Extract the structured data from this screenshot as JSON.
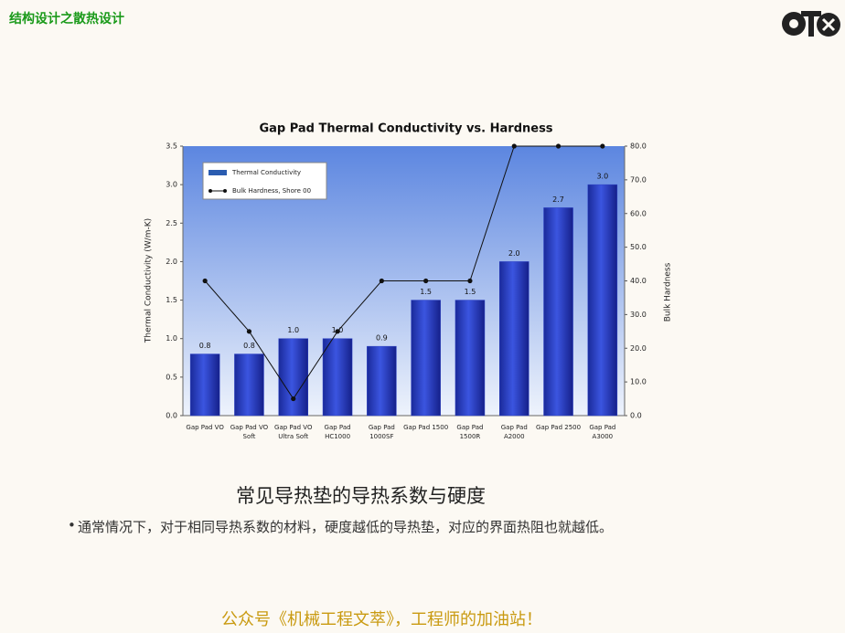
{
  "header": {
    "title": "结构设计之散热设计"
  },
  "chart_data": {
    "type": "bar",
    "title": "Gap Pad Thermal Conductivity vs. Hardness",
    "ylabel": "Thermal Conductivity (W/m-K)",
    "y2label": "Bulk Hardness",
    "categories": [
      "Gap Pad VO",
      "Gap Pad VO Soft",
      "Gap Pad VO Ultra Soft",
      "Gap Pad HC1000",
      "Gap Pad 1000SF",
      "Gap Pad 1500",
      "Gap Pad 1500R",
      "Gap Pad A2000",
      "Gap Pad 2500",
      "Gap Pad A3000"
    ],
    "series": [
      {
        "name": "Thermal Conductivity",
        "color": "#2a3fc4",
        "values": [
          0.8,
          0.8,
          1.0,
          1.0,
          0.9,
          1.5,
          1.5,
          2.0,
          2.7,
          3.0
        ],
        "value_labels": [
          "0.8",
          "0.8",
          "1.0",
          "1.0",
          "0.9",
          "1.5",
          "1.5",
          "2.0",
          "2.7",
          "3.0"
        ]
      },
      {
        "name": "Bulk Hardness, Shore 00",
        "color": "#111111",
        "type": "line",
        "axis": "y2",
        "values": [
          40,
          25,
          5,
          25,
          40,
          40,
          40,
          80,
          80,
          80
        ]
      }
    ],
    "ylim": [
      0,
      3.5
    ],
    "yticks": [
      {
        "value": 0,
        "label": "0.0"
      },
      {
        "value": 0.5,
        "label": "0.5"
      },
      {
        "value": 1,
        "label": "1.0"
      },
      {
        "value": 1.5,
        "label": "1.5"
      },
      {
        "value": 2,
        "label": "2.0"
      },
      {
        "value": 2.5,
        "label": "2.5"
      },
      {
        "value": 3,
        "label": "3.0"
      },
      {
        "value": 3.5,
        "label": "3.5"
      }
    ],
    "y2lim": [
      0,
      80
    ],
    "y2ticks": [
      {
        "value": 0,
        "label": "0.0"
      },
      {
        "value": 10,
        "label": "10.0"
      },
      {
        "value": 20,
        "label": "20.0"
      },
      {
        "value": 30,
        "label": "30.0"
      },
      {
        "value": 40,
        "label": "40.0"
      },
      {
        "value": 50,
        "label": "50.0"
      },
      {
        "value": 60,
        "label": "60.0"
      },
      {
        "value": 70,
        "label": "70.0"
      },
      {
        "value": 80,
        "label": "80.0"
      }
    ],
    "legend": "upper left"
  },
  "caption": "常见导热垫的导热系数与硬度",
  "bullet": "通常情况下，对于相同导热系数的材料，硬度越低的导热垫，对应的界面热阻也就越低。",
  "footer": "公众号《机械工程文萃》，工程师的加油站！"
}
